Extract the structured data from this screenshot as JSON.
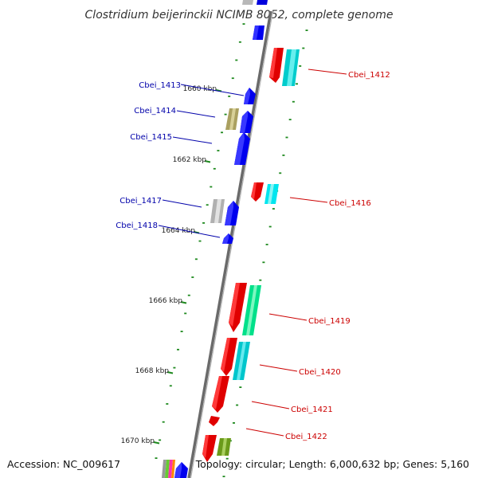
{
  "title": "Clostridium beijerinckii NCIMB 8052, complete genome",
  "footer": {
    "accession": "Accession: NC_009617",
    "topology": "Topology: circular; Length: 6,000,632 bp; Genes: 5,160"
  },
  "colors": {
    "backbone": "#7f7f7f",
    "tick": "#1f8a1f",
    "label_left": "#0000aa",
    "label_right": "#cc0000"
  },
  "position_ticks": [
    {
      "label": "1660 kbp"
    },
    {
      "label": "1662 kbp"
    },
    {
      "label": "1664 kbp"
    },
    {
      "label": "1666 kbp"
    },
    {
      "label": "1668 kbp"
    },
    {
      "label": "1670 kbp"
    }
  ],
  "gene_labels": [
    {
      "name": "Cbei_1412",
      "side": "right"
    },
    {
      "name": "Cbei_1413",
      "side": "left"
    },
    {
      "name": "Cbei_1414",
      "side": "left"
    },
    {
      "name": "Cbei_1415",
      "side": "left"
    },
    {
      "name": "Cbei_1416",
      "side": "right"
    },
    {
      "name": "Cbei_1417",
      "side": "left"
    },
    {
      "name": "Cbei_1418",
      "side": "left"
    },
    {
      "name": "Cbei_1419",
      "side": "right"
    },
    {
      "name": "Cbei_1420",
      "side": "right"
    },
    {
      "name": "Cbei_1421",
      "side": "right"
    },
    {
      "name": "Cbei_1422",
      "side": "right"
    }
  ]
}
